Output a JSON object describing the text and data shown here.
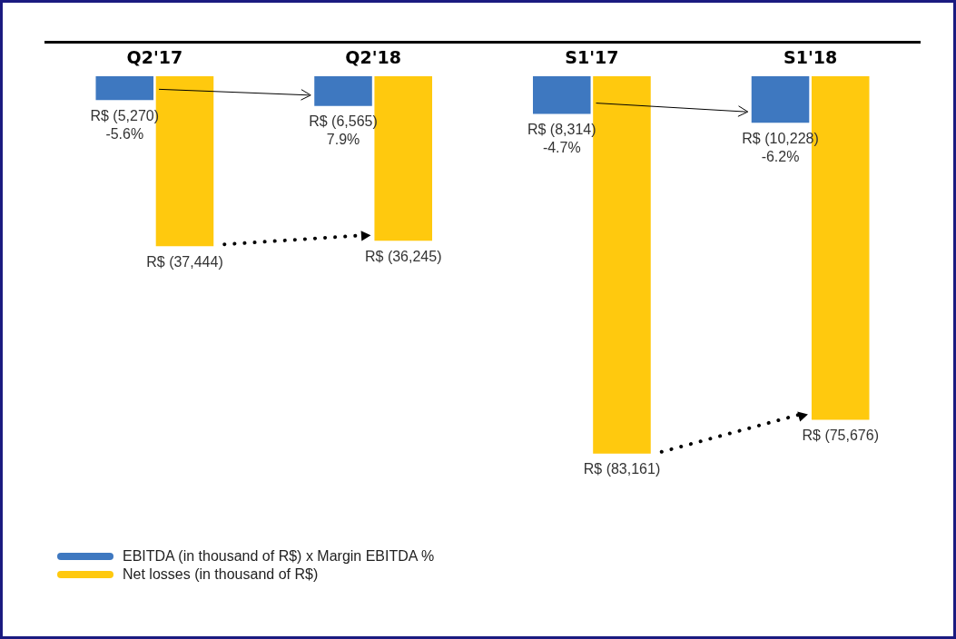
{
  "chart_data": {
    "type": "bar",
    "categories": [
      "Q2'17",
      "Q2'18",
      "S1'17",
      "S1'18"
    ],
    "series": [
      {
        "name": "EBITDA (in thousand of R$) x Margin EBITDA %",
        "color": "#3e78c0",
        "values": [
          -5270,
          -6565,
          -8314,
          -10228
        ],
        "value_labels": [
          "R$ (5,270)",
          "R$ (6,565)",
          "R$ (8,314)",
          "R$ (10,228)"
        ]
      },
      {
        "name": "Net losses (in thousand of R$)",
        "color": "#ffc90e",
        "values": [
          -37444,
          -36245,
          -83161,
          -75676
        ],
        "value_labels": [
          "R$ (37,444)",
          "R$ (36,245)",
          "R$ (83,161)",
          "R$ (75,676)"
        ]
      }
    ],
    "annotations": [
      {
        "text": "-5.6%",
        "x": "Q2'17",
        "y": -5270
      },
      {
        "text": "7.9%",
        "x": "Q2'18",
        "y": -6565
      },
      {
        "text": "-4.7%",
        "x": "S1'17",
        "y": -8314
      },
      {
        "text": "-6.2%",
        "x": "S1'18",
        "y": -10228
      }
    ],
    "legend": "bottom left",
    "grid": false
  }
}
